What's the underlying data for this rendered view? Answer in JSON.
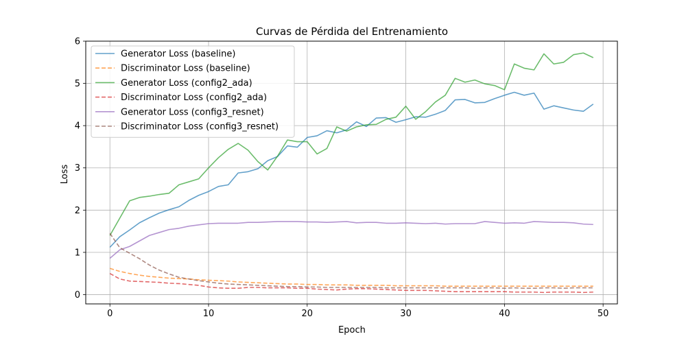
{
  "chart_data": {
    "type": "line",
    "title": "Curvas de Pérdida del Entrenamiento",
    "xlabel": "Epoch",
    "ylabel": "Loss",
    "xlim": [
      -2.45,
      51.45
    ],
    "ylim": [
      -0.22,
      6.0
    ],
    "xticks": [
      0,
      10,
      20,
      30,
      40,
      50
    ],
    "yticks": [
      0,
      1,
      2,
      3,
      4,
      5,
      6
    ],
    "grid": true,
    "legend_position": "upper-left",
    "x": [
      0,
      1,
      2,
      3,
      4,
      5,
      6,
      7,
      8,
      9,
      10,
      11,
      12,
      13,
      14,
      15,
      16,
      17,
      18,
      19,
      20,
      21,
      22,
      23,
      24,
      25,
      26,
      27,
      28,
      29,
      30,
      31,
      32,
      33,
      34,
      35,
      36,
      37,
      38,
      39,
      40,
      41,
      42,
      43,
      44,
      45,
      46,
      47,
      48,
      49
    ],
    "series": [
      {
        "name": "Generator Loss (baseline)",
        "color": "#1f77b4",
        "dash": "solid",
        "values": [
          1.12,
          1.37,
          1.53,
          1.7,
          1.82,
          1.93,
          2.01,
          2.08,
          2.23,
          2.35,
          2.44,
          2.56,
          2.6,
          2.88,
          2.91,
          2.98,
          3.17,
          3.27,
          3.52,
          3.49,
          3.72,
          3.76,
          3.88,
          3.83,
          3.9,
          4.09,
          3.98,
          4.18,
          4.19,
          4.08,
          4.14,
          4.21,
          4.2,
          4.27,
          4.36,
          4.61,
          4.62,
          4.54,
          4.55,
          4.64,
          4.72,
          4.79,
          4.72,
          4.77,
          4.39,
          4.47,
          4.42,
          4.37,
          4.34,
          4.51
        ]
      },
      {
        "name": "Discriminator Loss (baseline)",
        "color": "#ff7f0e",
        "dash": "dashed",
        "values": [
          0.62,
          0.55,
          0.5,
          0.46,
          0.43,
          0.41,
          0.39,
          0.38,
          0.37,
          0.35,
          0.34,
          0.33,
          0.32,
          0.3,
          0.29,
          0.28,
          0.27,
          0.26,
          0.25,
          0.25,
          0.24,
          0.24,
          0.23,
          0.23,
          0.23,
          0.22,
          0.22,
          0.22,
          0.22,
          0.21,
          0.21,
          0.21,
          0.21,
          0.21,
          0.2,
          0.2,
          0.2,
          0.2,
          0.2,
          0.2,
          0.2,
          0.2,
          0.2,
          0.2,
          0.2,
          0.2,
          0.2,
          0.2,
          0.2,
          0.2
        ]
      },
      {
        "name": "Generator Loss (config2_ada)",
        "color": "#2ca02c",
        "dash": "solid",
        "values": [
          1.4,
          1.81,
          2.22,
          2.3,
          2.33,
          2.37,
          2.4,
          2.6,
          2.67,
          2.74,
          3.0,
          3.24,
          3.44,
          3.58,
          3.42,
          3.15,
          2.95,
          3.28,
          3.66,
          3.62,
          3.62,
          3.33,
          3.46,
          3.97,
          3.87,
          3.97,
          4.02,
          4.03,
          4.15,
          4.2,
          4.46,
          4.15,
          4.33,
          4.56,
          4.72,
          5.12,
          5.03,
          5.08,
          4.99,
          4.95,
          4.85,
          5.46,
          5.36,
          5.32,
          5.7,
          5.46,
          5.5,
          5.68,
          5.72,
          5.61
        ]
      },
      {
        "name": "Discriminator Loss (config2_ada)",
        "color": "#d62728",
        "dash": "dashed",
        "values": [
          0.5,
          0.37,
          0.32,
          0.31,
          0.3,
          0.29,
          0.27,
          0.26,
          0.24,
          0.22,
          0.18,
          0.16,
          0.15,
          0.15,
          0.17,
          0.17,
          0.16,
          0.16,
          0.16,
          0.15,
          0.15,
          0.13,
          0.12,
          0.11,
          0.13,
          0.14,
          0.14,
          0.13,
          0.12,
          0.11,
          0.1,
          0.1,
          0.1,
          0.09,
          0.08,
          0.07,
          0.07,
          0.07,
          0.07,
          0.07,
          0.07,
          0.06,
          0.06,
          0.06,
          0.05,
          0.06,
          0.06,
          0.06,
          0.05,
          0.06
        ]
      },
      {
        "name": "Generator Loss (config3_resnet)",
        "color": "#9467bd",
        "dash": "solid",
        "values": [
          0.86,
          1.06,
          1.14,
          1.27,
          1.4,
          1.47,
          1.54,
          1.57,
          1.62,
          1.65,
          1.68,
          1.69,
          1.69,
          1.69,
          1.71,
          1.71,
          1.72,
          1.73,
          1.73,
          1.73,
          1.72,
          1.72,
          1.71,
          1.72,
          1.73,
          1.7,
          1.71,
          1.71,
          1.69,
          1.69,
          1.7,
          1.69,
          1.68,
          1.69,
          1.67,
          1.68,
          1.68,
          1.68,
          1.73,
          1.71,
          1.69,
          1.7,
          1.69,
          1.73,
          1.72,
          1.71,
          1.71,
          1.7,
          1.67,
          1.66
        ]
      },
      {
        "name": "Discriminator Loss (config3_resnet)",
        "color": "#8c564b",
        "dash": "dashed",
        "values": [
          1.45,
          1.11,
          0.98,
          0.85,
          0.7,
          0.58,
          0.49,
          0.41,
          0.37,
          0.33,
          0.3,
          0.27,
          0.25,
          0.24,
          0.23,
          0.22,
          0.21,
          0.2,
          0.19,
          0.19,
          0.18,
          0.18,
          0.17,
          0.17,
          0.17,
          0.17,
          0.17,
          0.17,
          0.16,
          0.16,
          0.16,
          0.16,
          0.16,
          0.16,
          0.16,
          0.16,
          0.16,
          0.15,
          0.16,
          0.16,
          0.15,
          0.16,
          0.15,
          0.15,
          0.16,
          0.16,
          0.15,
          0.16,
          0.16,
          0.16
        ]
      }
    ]
  }
}
